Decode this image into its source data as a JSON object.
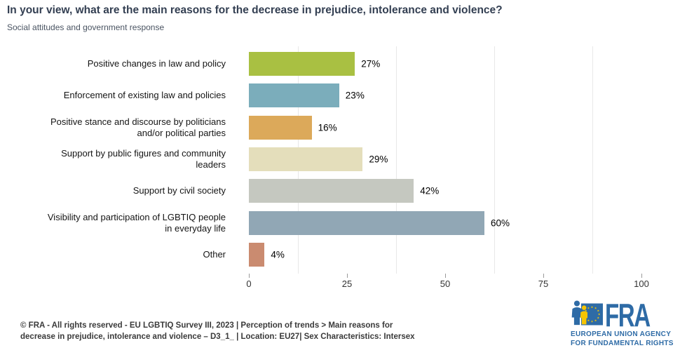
{
  "header": {
    "title": "In your view, what are the main reasons for the decrease in prejudice, intolerance and violence?",
    "subtitle": "Social attitudes and government response"
  },
  "chart_data": {
    "type": "bar",
    "orientation": "horizontal",
    "title": "In your view, what are the main reasons for the decrease in prejudice, intolerance and violence?",
    "subtitle": "Social attitudes and government response",
    "categories": [
      "Positive changes in law and policy",
      "Enforcement of existing law and policies",
      "Positive stance and discourse by politicians and/or political parties",
      "Support by public figures and community leaders",
      "Support by civil society",
      "Visibility and participation of LGBTIQ people in everyday life",
      "Other"
    ],
    "values": [
      27,
      23,
      16,
      29,
      42,
      60,
      4
    ],
    "value_labels": [
      "27%",
      "23%",
      "16%",
      "29%",
      "42%",
      "60%",
      "4%"
    ],
    "colors": [
      "#a9c042",
      "#7badbb",
      "#dca95a",
      "#e4debb",
      "#c5c8c0",
      "#91a7b5",
      "#ca8b70"
    ],
    "xlim": [
      0,
      100
    ],
    "x_ticks": [
      0,
      25,
      50,
      75,
      100
    ],
    "x_tick_labels": [
      "0",
      "25",
      "50",
      "75",
      "100"
    ],
    "minor_gridlines": [
      12.5,
      37.5,
      62.5,
      87.5
    ],
    "grid": "minor-vertical-only",
    "legend": "none"
  },
  "footer": {
    "line1": "© FRA - All rights reserved - EU LGBTIQ Survey III, 2023 | Perception of trends > Main reasons for",
    "line2": "decrease in prejudice, intolerance and violence – D3_1_ | Location: EU27| Sex Characteristics: Intersex"
  },
  "logo": {
    "acronym": "FRA",
    "line1": "EUROPEAN UNION AGENCY",
    "line2": "FOR FUNDAMENTAL RIGHTS",
    "brand_blue": "#2e6ba6",
    "star_yellow": "#f7c500"
  }
}
